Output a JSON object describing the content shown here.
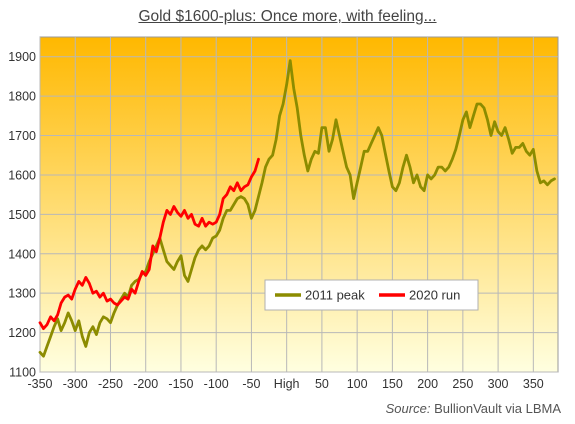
{
  "chart_data": {
    "type": "line",
    "title": "Gold $1600-plus: Once more, with feeling...",
    "source_label": "Source:",
    "source_text": "BullionVault via LBMA",
    "xlabel": "",
    "ylabel": "",
    "xlim": [
      -350,
      385
    ],
    "ylim": [
      1100,
      1950
    ],
    "x_ticks": [
      {
        "value": -350,
        "label": "-350"
      },
      {
        "value": -300,
        "label": "-300"
      },
      {
        "value": -250,
        "label": "-250"
      },
      {
        "value": -200,
        "label": "-200"
      },
      {
        "value": -150,
        "label": "-150"
      },
      {
        "value": -100,
        "label": "-100"
      },
      {
        "value": -50,
        "label": "-50"
      },
      {
        "value": 0,
        "label": "High"
      },
      {
        "value": 50,
        "label": "50"
      },
      {
        "value": 100,
        "label": "100"
      },
      {
        "value": 150,
        "label": "150"
      },
      {
        "value": 200,
        "label": "200"
      },
      {
        "value": 250,
        "label": "250"
      },
      {
        "value": 300,
        "label": "300"
      },
      {
        "value": 350,
        "label": "350"
      }
    ],
    "y_ticks": [
      1100,
      1200,
      1300,
      1400,
      1500,
      1600,
      1700,
      1800,
      1900
    ],
    "grid": true,
    "legend_position": "center-right",
    "background_gradient": [
      "#FFB800",
      "#FFFFE0"
    ],
    "series": [
      {
        "name": "2011 peak",
        "color": "#8C8C00",
        "points": [
          [
            -350,
            1150
          ],
          [
            -345,
            1140
          ],
          [
            -340,
            1165
          ],
          [
            -335,
            1190
          ],
          [
            -330,
            1215
          ],
          [
            -325,
            1235
          ],
          [
            -320,
            1205
          ],
          [
            -315,
            1225
          ],
          [
            -310,
            1250
          ],
          [
            -305,
            1230
          ],
          [
            -300,
            1205
          ],
          [
            -295,
            1230
          ],
          [
            -290,
            1190
          ],
          [
            -285,
            1165
          ],
          [
            -280,
            1200
          ],
          [
            -275,
            1215
          ],
          [
            -270,
            1195
          ],
          [
            -265,
            1225
          ],
          [
            -260,
            1240
          ],
          [
            -255,
            1235
          ],
          [
            -250,
            1225
          ],
          [
            -245,
            1250
          ],
          [
            -240,
            1270
          ],
          [
            -235,
            1285
          ],
          [
            -230,
            1300
          ],
          [
            -225,
            1290
          ],
          [
            -220,
            1320
          ],
          [
            -215,
            1330
          ],
          [
            -210,
            1335
          ],
          [
            -205,
            1350
          ],
          [
            -200,
            1355
          ],
          [
            -195,
            1380
          ],
          [
            -190,
            1400
          ],
          [
            -185,
            1420
          ],
          [
            -180,
            1440
          ],
          [
            -175,
            1410
          ],
          [
            -170,
            1380
          ],
          [
            -165,
            1370
          ],
          [
            -160,
            1360
          ],
          [
            -155,
            1380
          ],
          [
            -150,
            1395
          ],
          [
            -145,
            1345
          ],
          [
            -140,
            1330
          ],
          [
            -135,
            1360
          ],
          [
            -130,
            1390
          ],
          [
            -125,
            1410
          ],
          [
            -120,
            1420
          ],
          [
            -115,
            1410
          ],
          [
            -110,
            1420
          ],
          [
            -105,
            1440
          ],
          [
            -100,
            1445
          ],
          [
            -95,
            1460
          ],
          [
            -90,
            1490
          ],
          [
            -85,
            1510
          ],
          [
            -80,
            1510
          ],
          [
            -75,
            1525
          ],
          [
            -70,
            1540
          ],
          [
            -65,
            1545
          ],
          [
            -60,
            1540
          ],
          [
            -55,
            1525
          ],
          [
            -50,
            1490
          ],
          [
            -45,
            1510
          ],
          [
            -40,
            1545
          ],
          [
            -35,
            1580
          ],
          [
            -30,
            1620
          ],
          [
            -25,
            1640
          ],
          [
            -20,
            1650
          ],
          [
            -15,
            1690
          ],
          [
            -10,
            1750
          ],
          [
            -5,
            1780
          ],
          [
            0,
            1830
          ],
          [
            5,
            1890
          ],
          [
            10,
            1820
          ],
          [
            15,
            1770
          ],
          [
            20,
            1700
          ],
          [
            25,
            1650
          ],
          [
            30,
            1610
          ],
          [
            35,
            1640
          ],
          [
            40,
            1660
          ],
          [
            45,
            1655
          ],
          [
            50,
            1720
          ],
          [
            55,
            1720
          ],
          [
            60,
            1660
          ],
          [
            65,
            1690
          ],
          [
            70,
            1740
          ],
          [
            75,
            1700
          ],
          [
            80,
            1660
          ],
          [
            85,
            1620
          ],
          [
            90,
            1600
          ],
          [
            95,
            1540
          ],
          [
            100,
            1580
          ],
          [
            105,
            1620
          ],
          [
            110,
            1660
          ],
          [
            115,
            1660
          ],
          [
            120,
            1680
          ],
          [
            125,
            1700
          ],
          [
            130,
            1720
          ],
          [
            135,
            1700
          ],
          [
            140,
            1655
          ],
          [
            145,
            1610
          ],
          [
            150,
            1570
          ],
          [
            155,
            1560
          ],
          [
            160,
            1580
          ],
          [
            165,
            1620
          ],
          [
            170,
            1650
          ],
          [
            175,
            1620
          ],
          [
            180,
            1580
          ],
          [
            185,
            1600
          ],
          [
            190,
            1570
          ],
          [
            195,
            1560
          ],
          [
            200,
            1600
          ],
          [
            205,
            1590
          ],
          [
            210,
            1600
          ],
          [
            215,
            1620
          ],
          [
            220,
            1620
          ],
          [
            225,
            1610
          ],
          [
            230,
            1620
          ],
          [
            235,
            1640
          ],
          [
            240,
            1665
          ],
          [
            245,
            1700
          ],
          [
            250,
            1740
          ],
          [
            255,
            1760
          ],
          [
            260,
            1720
          ],
          [
            265,
            1750
          ],
          [
            270,
            1780
          ],
          [
            275,
            1780
          ],
          [
            280,
            1770
          ],
          [
            285,
            1740
          ],
          [
            290,
            1700
          ],
          [
            295,
            1735
          ],
          [
            300,
            1710
          ],
          [
            305,
            1700
          ],
          [
            310,
            1720
          ],
          [
            315,
            1690
          ],
          [
            320,
            1655
          ],
          [
            325,
            1670
          ],
          [
            330,
            1670
          ],
          [
            335,
            1680
          ],
          [
            340,
            1660
          ],
          [
            345,
            1650
          ],
          [
            350,
            1665
          ],
          [
            355,
            1610
          ],
          [
            360,
            1580
          ],
          [
            365,
            1585
          ],
          [
            370,
            1575
          ],
          [
            375,
            1585
          ],
          [
            380,
            1590
          ]
        ]
      },
      {
        "name": "2020 run",
        "color": "#FF0000",
        "points": [
          [
            -350,
            1225
          ],
          [
            -345,
            1210
          ],
          [
            -340,
            1220
          ],
          [
            -335,
            1240
          ],
          [
            -330,
            1230
          ],
          [
            -325,
            1245
          ],
          [
            -320,
            1275
          ],
          [
            -315,
            1290
          ],
          [
            -310,
            1295
          ],
          [
            -305,
            1285
          ],
          [
            -300,
            1310
          ],
          [
            -295,
            1330
          ],
          [
            -290,
            1320
          ],
          [
            -285,
            1340
          ],
          [
            -280,
            1325
          ],
          [
            -275,
            1300
          ],
          [
            -270,
            1305
          ],
          [
            -265,
            1290
          ],
          [
            -260,
            1300
          ],
          [
            -255,
            1280
          ],
          [
            -250,
            1285
          ],
          [
            -245,
            1275
          ],
          [
            -240,
            1270
          ],
          [
            -235,
            1280
          ],
          [
            -230,
            1290
          ],
          [
            -225,
            1285
          ],
          [
            -220,
            1310
          ],
          [
            -215,
            1300
          ],
          [
            -210,
            1330
          ],
          [
            -205,
            1355
          ],
          [
            -200,
            1345
          ],
          [
            -195,
            1360
          ],
          [
            -190,
            1420
          ],
          [
            -185,
            1405
          ],
          [
            -180,
            1440
          ],
          [
            -175,
            1480
          ],
          [
            -170,
            1510
          ],
          [
            -165,
            1500
          ],
          [
            -160,
            1520
          ],
          [
            -155,
            1505
          ],
          [
            -150,
            1495
          ],
          [
            -145,
            1510
          ],
          [
            -140,
            1490
          ],
          [
            -135,
            1500
          ],
          [
            -130,
            1475
          ],
          [
            -125,
            1470
          ],
          [
            -120,
            1490
          ],
          [
            -115,
            1470
          ],
          [
            -110,
            1480
          ],
          [
            -105,
            1475
          ],
          [
            -100,
            1480
          ],
          [
            -95,
            1500
          ],
          [
            -90,
            1540
          ],
          [
            -85,
            1550
          ],
          [
            -80,
            1570
          ],
          [
            -75,
            1560
          ],
          [
            -70,
            1580
          ],
          [
            -65,
            1560
          ],
          [
            -60,
            1570
          ],
          [
            -55,
            1575
          ],
          [
            -50,
            1595
          ],
          [
            -45,
            1610
          ],
          [
            -40,
            1640
          ]
        ]
      }
    ]
  }
}
